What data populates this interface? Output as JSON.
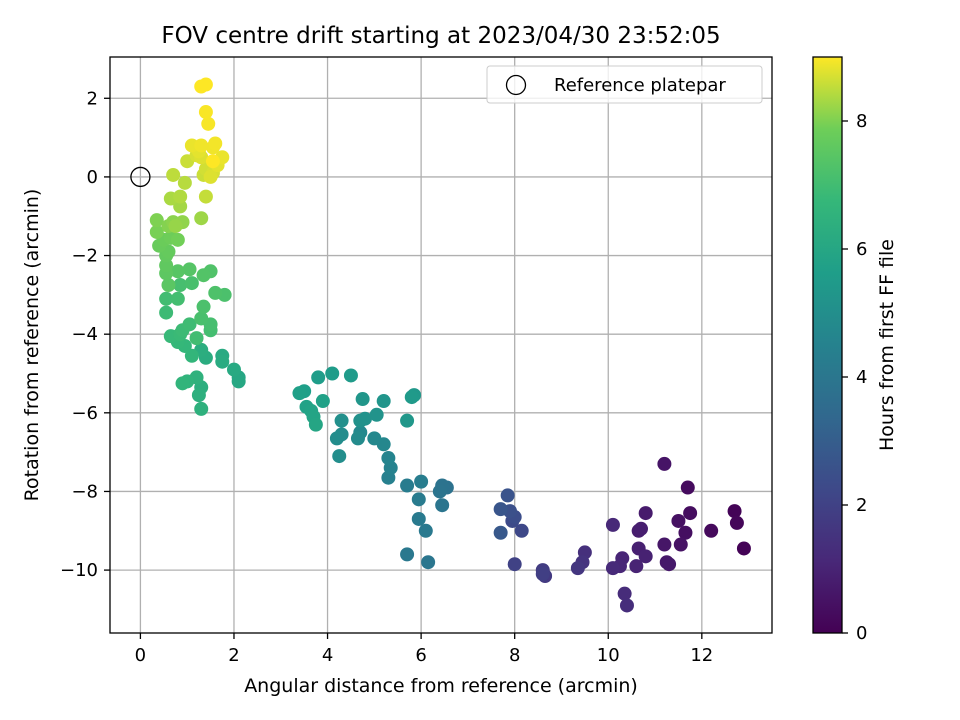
{
  "chart_data": {
    "type": "scatter",
    "title": "FOV centre drift starting at 2023/04/30 23:52:05",
    "xlabel": "Angular distance from reference (arcmin)",
    "ylabel": "Rotation from reference (arcmin)",
    "colorbar_label": "Hours from first FF file",
    "xlim": [
      -0.65,
      13.5
    ],
    "ylim": [
      -11.6,
      3.05
    ],
    "clim": [
      0,
      9
    ],
    "xticks": [
      0,
      2,
      4,
      6,
      8,
      10,
      12
    ],
    "yticks": [
      -10,
      -8,
      -6,
      -4,
      -2,
      0,
      2
    ],
    "cticks": [
      0,
      2,
      4,
      6,
      8
    ],
    "grid": true,
    "colormap": "viridis",
    "legend": {
      "position": "top-right",
      "entries": [
        "Reference platepar"
      ]
    },
    "reference": {
      "x": 0,
      "y": 0
    },
    "points": [
      {
        "x": 12.9,
        "y": -9.45,
        "t": 0.05
      },
      {
        "x": 12.7,
        "y": -8.5,
        "t": 0.1
      },
      {
        "x": 12.75,
        "y": -8.8,
        "t": 0.15
      },
      {
        "x": 12.2,
        "y": -9.0,
        "t": 0.25
      },
      {
        "x": 11.7,
        "y": -7.9,
        "t": 0.3
      },
      {
        "x": 11.75,
        "y": -8.55,
        "t": 0.35
      },
      {
        "x": 11.65,
        "y": -9.05,
        "t": 0.4
      },
      {
        "x": 11.5,
        "y": -8.75,
        "t": 0.45
      },
      {
        "x": 11.55,
        "y": -9.35,
        "t": 0.5
      },
      {
        "x": 11.2,
        "y": -7.3,
        "t": 0.55
      },
      {
        "x": 11.2,
        "y": -9.35,
        "t": 0.6
      },
      {
        "x": 11.25,
        "y": -9.8,
        "t": 0.65
      },
      {
        "x": 11.3,
        "y": -9.85,
        "t": 0.7
      },
      {
        "x": 10.8,
        "y": -8.55,
        "t": 0.75
      },
      {
        "x": 10.65,
        "y": -9.0,
        "t": 0.8
      },
      {
        "x": 10.7,
        "y": -8.95,
        "t": 0.85
      },
      {
        "x": 10.65,
        "y": -9.45,
        "t": 0.9
      },
      {
        "x": 10.8,
        "y": -9.65,
        "t": 0.95
      },
      {
        "x": 10.6,
        "y": -9.9,
        "t": 1.0
      },
      {
        "x": 10.3,
        "y": -9.7,
        "t": 1.05
      },
      {
        "x": 10.25,
        "y": -9.9,
        "t": 1.1
      },
      {
        "x": 10.1,
        "y": -8.85,
        "t": 1.15
      },
      {
        "x": 10.1,
        "y": -9.95,
        "t": 1.2
      },
      {
        "x": 10.35,
        "y": -10.6,
        "t": 1.25
      },
      {
        "x": 10.4,
        "y": -10.9,
        "t": 1.3
      },
      {
        "x": 9.5,
        "y": -9.55,
        "t": 1.4
      },
      {
        "x": 9.45,
        "y": -9.8,
        "t": 1.5
      },
      {
        "x": 9.35,
        "y": -9.95,
        "t": 1.6
      },
      {
        "x": 8.65,
        "y": -10.15,
        "t": 1.7
      },
      {
        "x": 8.6,
        "y": -10.0,
        "t": 1.8
      },
      {
        "x": 8.6,
        "y": -10.1,
        "t": 1.9
      },
      {
        "x": 8.0,
        "y": -9.85,
        "t": 2.0
      },
      {
        "x": 8.15,
        "y": -9.0,
        "t": 2.2
      },
      {
        "x": 7.95,
        "y": -8.75,
        "t": 2.3
      },
      {
        "x": 8.0,
        "y": -8.65,
        "t": 2.4
      },
      {
        "x": 7.9,
        "y": -8.5,
        "t": 2.5
      },
      {
        "x": 7.85,
        "y": -8.1,
        "t": 2.6
      },
      {
        "x": 7.7,
        "y": -8.45,
        "t": 2.7
      },
      {
        "x": 7.7,
        "y": -9.05,
        "t": 2.8
      },
      {
        "x": 6.55,
        "y": -7.9,
        "t": 3.8
      },
      {
        "x": 6.45,
        "y": -7.85,
        "t": 3.85
      },
      {
        "x": 6.4,
        "y": -8.0,
        "t": 3.9
      },
      {
        "x": 6.45,
        "y": -8.35,
        "t": 3.95
      },
      {
        "x": 6.15,
        "y": -9.8,
        "t": 4.0
      },
      {
        "x": 5.7,
        "y": -9.6,
        "t": 4.05
      },
      {
        "x": 6.1,
        "y": -9.0,
        "t": 4.1
      },
      {
        "x": 5.95,
        "y": -8.7,
        "t": 4.15
      },
      {
        "x": 5.95,
        "y": -8.2,
        "t": 4.2
      },
      {
        "x": 5.7,
        "y": -7.85,
        "t": 4.25
      },
      {
        "x": 6.0,
        "y": -7.75,
        "t": 4.3
      },
      {
        "x": 5.3,
        "y": -7.65,
        "t": 4.4
      },
      {
        "x": 5.35,
        "y": -7.4,
        "t": 4.5
      },
      {
        "x": 5.3,
        "y": -7.15,
        "t": 4.6
      },
      {
        "x": 5.2,
        "y": -6.8,
        "t": 4.7
      },
      {
        "x": 5.0,
        "y": -6.65,
        "t": 4.75
      },
      {
        "x": 4.7,
        "y": -6.5,
        "t": 4.8
      },
      {
        "x": 4.65,
        "y": -6.65,
        "t": 4.85
      },
      {
        "x": 4.3,
        "y": -6.55,
        "t": 4.9
      },
      {
        "x": 4.2,
        "y": -6.65,
        "t": 4.95
      },
      {
        "x": 4.25,
        "y": -7.1,
        "t": 5.0
      },
      {
        "x": 4.3,
        "y": -6.2,
        "t": 5.05
      },
      {
        "x": 4.7,
        "y": -6.2,
        "t": 5.1
      },
      {
        "x": 4.8,
        "y": -6.15,
        "t": 5.15
      },
      {
        "x": 5.05,
        "y": -6.05,
        "t": 5.2
      },
      {
        "x": 5.2,
        "y": -5.7,
        "t": 5.25
      },
      {
        "x": 4.75,
        "y": -5.65,
        "t": 5.3
      },
      {
        "x": 5.7,
        "y": -6.2,
        "t": 5.35
      },
      {
        "x": 5.85,
        "y": -5.55,
        "t": 5.4
      },
      {
        "x": 5.8,
        "y": -5.6,
        "t": 5.45
      },
      {
        "x": 4.5,
        "y": -5.05,
        "t": 5.5
      },
      {
        "x": 4.1,
        "y": -5.0,
        "t": 5.55
      },
      {
        "x": 3.8,
        "y": -5.1,
        "t": 5.6
      },
      {
        "x": 3.5,
        "y": -5.45,
        "t": 5.65
      },
      {
        "x": 3.4,
        "y": -5.5,
        "t": 5.7
      },
      {
        "x": 3.9,
        "y": -5.7,
        "t": 5.75
      },
      {
        "x": 3.55,
        "y": -5.85,
        "t": 5.8
      },
      {
        "x": 3.65,
        "y": -5.95,
        "t": 5.85
      },
      {
        "x": 3.7,
        "y": -6.1,
        "t": 5.9
      },
      {
        "x": 3.75,
        "y": -6.3,
        "t": 5.95
      },
      {
        "x": 2.1,
        "y": -5.1,
        "t": 6.0
      },
      {
        "x": 2.1,
        "y": -5.2,
        "t": 6.05
      },
      {
        "x": 2.0,
        "y": -4.9,
        "t": 6.1
      },
      {
        "x": 1.75,
        "y": -4.55,
        "t": 6.15
      },
      {
        "x": 1.75,
        "y": -4.7,
        "t": 6.2
      },
      {
        "x": 1.4,
        "y": -4.6,
        "t": 6.25
      },
      {
        "x": 1.3,
        "y": -4.4,
        "t": 6.3
      },
      {
        "x": 1.3,
        "y": -5.35,
        "t": 6.35
      },
      {
        "x": 1.25,
        "y": -5.55,
        "t": 6.4
      },
      {
        "x": 1.3,
        "y": -5.9,
        "t": 6.45
      },
      {
        "x": 1.2,
        "y": -5.1,
        "t": 6.5
      },
      {
        "x": 1.0,
        "y": -5.2,
        "t": 6.55
      },
      {
        "x": 0.9,
        "y": -5.25,
        "t": 6.6
      },
      {
        "x": 1.1,
        "y": -4.55,
        "t": 6.65
      },
      {
        "x": 0.95,
        "y": -4.3,
        "t": 6.7
      },
      {
        "x": 0.8,
        "y": -4.2,
        "t": 6.75
      },
      {
        "x": 0.65,
        "y": -4.05,
        "t": 6.8
      },
      {
        "x": 0.85,
        "y": -4.0,
        "t": 6.85
      },
      {
        "x": 0.9,
        "y": -3.9,
        "t": 6.9
      },
      {
        "x": 1.05,
        "y": -3.75,
        "t": 6.95
      },
      {
        "x": 1.2,
        "y": -4.1,
        "t": 7.0
      },
      {
        "x": 1.5,
        "y": -3.9,
        "t": 7.05
      },
      {
        "x": 1.5,
        "y": -3.75,
        "t": 7.1
      },
      {
        "x": 1.3,
        "y": -3.6,
        "t": 7.15
      },
      {
        "x": 1.35,
        "y": -3.3,
        "t": 7.2
      },
      {
        "x": 0.55,
        "y": -3.45,
        "t": 6.9
      },
      {
        "x": 0.55,
        "y": -3.1,
        "t": 7.0
      },
      {
        "x": 0.8,
        "y": -3.1,
        "t": 7.05
      },
      {
        "x": 0.85,
        "y": -2.75,
        "t": 7.1
      },
      {
        "x": 1.1,
        "y": -2.7,
        "t": 7.15
      },
      {
        "x": 1.8,
        "y": -3.0,
        "t": 7.2
      },
      {
        "x": 1.6,
        "y": -2.95,
        "t": 7.25
      },
      {
        "x": 1.5,
        "y": -2.4,
        "t": 7.3
      },
      {
        "x": 1.35,
        "y": -2.5,
        "t": 7.35
      },
      {
        "x": 1.05,
        "y": -2.35,
        "t": 7.4
      },
      {
        "x": 0.8,
        "y": -2.4,
        "t": 7.45
      },
      {
        "x": 0.6,
        "y": -2.75,
        "t": 7.5
      },
      {
        "x": 0.55,
        "y": -2.45,
        "t": 7.55
      },
      {
        "x": 0.55,
        "y": -2.25,
        "t": 7.6
      },
      {
        "x": 0.55,
        "y": -2.0,
        "t": 7.65
      },
      {
        "x": 0.6,
        "y": -1.9,
        "t": 7.7
      },
      {
        "x": 0.4,
        "y": -1.75,
        "t": 7.75
      },
      {
        "x": 0.5,
        "y": -1.6,
        "t": 7.8
      },
      {
        "x": 0.65,
        "y": -1.55,
        "t": 7.85
      },
      {
        "x": 0.8,
        "y": -1.6,
        "t": 7.9
      },
      {
        "x": 0.35,
        "y": -1.4,
        "t": 7.95
      },
      {
        "x": 0.35,
        "y": -1.1,
        "t": 8.0
      },
      {
        "x": 0.6,
        "y": -1.25,
        "t": 8.05
      },
      {
        "x": 0.7,
        "y": -1.15,
        "t": 8.1
      },
      {
        "x": 0.9,
        "y": -1.15,
        "t": 8.15
      },
      {
        "x": 0.75,
        "y": -1.25,
        "t": 8.2
      },
      {
        "x": 1.3,
        "y": -1.05,
        "t": 8.25
      },
      {
        "x": 0.85,
        "y": -0.75,
        "t": 8.3
      },
      {
        "x": 0.65,
        "y": -0.55,
        "t": 8.35
      },
      {
        "x": 0.85,
        "y": -0.5,
        "t": 8.4
      },
      {
        "x": 0.95,
        "y": -0.15,
        "t": 8.45
      },
      {
        "x": 0.7,
        "y": 0.05,
        "t": 8.5
      },
      {
        "x": 1.4,
        "y": -0.5,
        "t": 8.55
      },
      {
        "x": 1.35,
        "y": 0.05,
        "t": 8.6
      },
      {
        "x": 1.4,
        "y": 0.2,
        "t": 8.65
      },
      {
        "x": 1.55,
        "y": 0.1,
        "t": 8.7
      },
      {
        "x": 1.5,
        "y": 0.0,
        "t": 8.75
      },
      {
        "x": 1.65,
        "y": 0.3,
        "t": 8.8
      },
      {
        "x": 1.75,
        "y": 0.5,
        "t": 8.85
      },
      {
        "x": 1.55,
        "y": 0.75,
        "t": 8.9
      },
      {
        "x": 1.6,
        "y": 0.85,
        "t": 8.92
      },
      {
        "x": 1.0,
        "y": 0.4,
        "t": 8.6
      },
      {
        "x": 1.2,
        "y": 0.55,
        "t": 8.7
      },
      {
        "x": 1.3,
        "y": 0.5,
        "t": 8.75
      },
      {
        "x": 1.25,
        "y": 0.65,
        "t": 8.8
      },
      {
        "x": 1.1,
        "y": 0.8,
        "t": 8.85
      },
      {
        "x": 1.3,
        "y": 0.8,
        "t": 8.9
      },
      {
        "x": 1.45,
        "y": 1.35,
        "t": 8.95
      },
      {
        "x": 1.4,
        "y": 1.65,
        "t": 8.97
      },
      {
        "x": 1.3,
        "y": 2.3,
        "t": 9.0
      },
      {
        "x": 1.4,
        "y": 2.35,
        "t": 9.0
      },
      {
        "x": 1.55,
        "y": 0.4,
        "t": 9.0
      }
    ]
  }
}
